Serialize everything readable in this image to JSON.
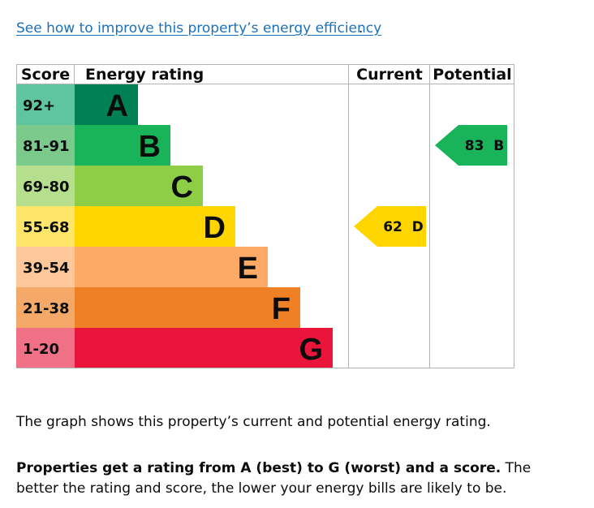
{
  "link": {
    "text": "See how to improve this property’s energy efficiency",
    "tail": "."
  },
  "chart_data": {
    "type": "bar",
    "headers": {
      "score": "Score",
      "rating": "Energy rating",
      "current": "Current",
      "potential": "Potential"
    },
    "bands": [
      {
        "range": "92+",
        "letter": "A",
        "color": "#008054",
        "band_color": "#5fc59e",
        "light": false
      },
      {
        "range": "81-91",
        "letter": "B",
        "color": "#19b459",
        "band_color": "#7bc98b",
        "light": false
      },
      {
        "range": "69-80",
        "letter": "C",
        "color": "#8dce46",
        "band_color": "#b5df8d",
        "light": false
      },
      {
        "range": "55-68",
        "letter": "D",
        "color": "#ffd500",
        "band_color": "#ffe66b",
        "light": false
      },
      {
        "range": "39-54",
        "letter": "E",
        "color": "#fcaa65",
        "band_color": "#fdc79a",
        "light": false
      },
      {
        "range": "21-38",
        "letter": "F",
        "color": "#ef8023",
        "band_color": "#f4a968",
        "light": false
      },
      {
        "range": "1-20",
        "letter": "G",
        "color": "#e9153b",
        "band_color": "#f07085",
        "light": false
      }
    ],
    "current": {
      "score": 62,
      "letter": "D",
      "label": "62  D",
      "color": "#ffd500"
    },
    "potential": {
      "score": 83,
      "letter": "B",
      "label": "83  B",
      "color": "#19b459"
    }
  },
  "text": {
    "graph_desc": "The graph shows this property’s current and potential energy rating.",
    "rating_bold": "Properties get a rating from A (best) to G (worst) and a score.",
    "rating_rest": " The better the rating and score, the lower your energy bills are likely to be."
  }
}
